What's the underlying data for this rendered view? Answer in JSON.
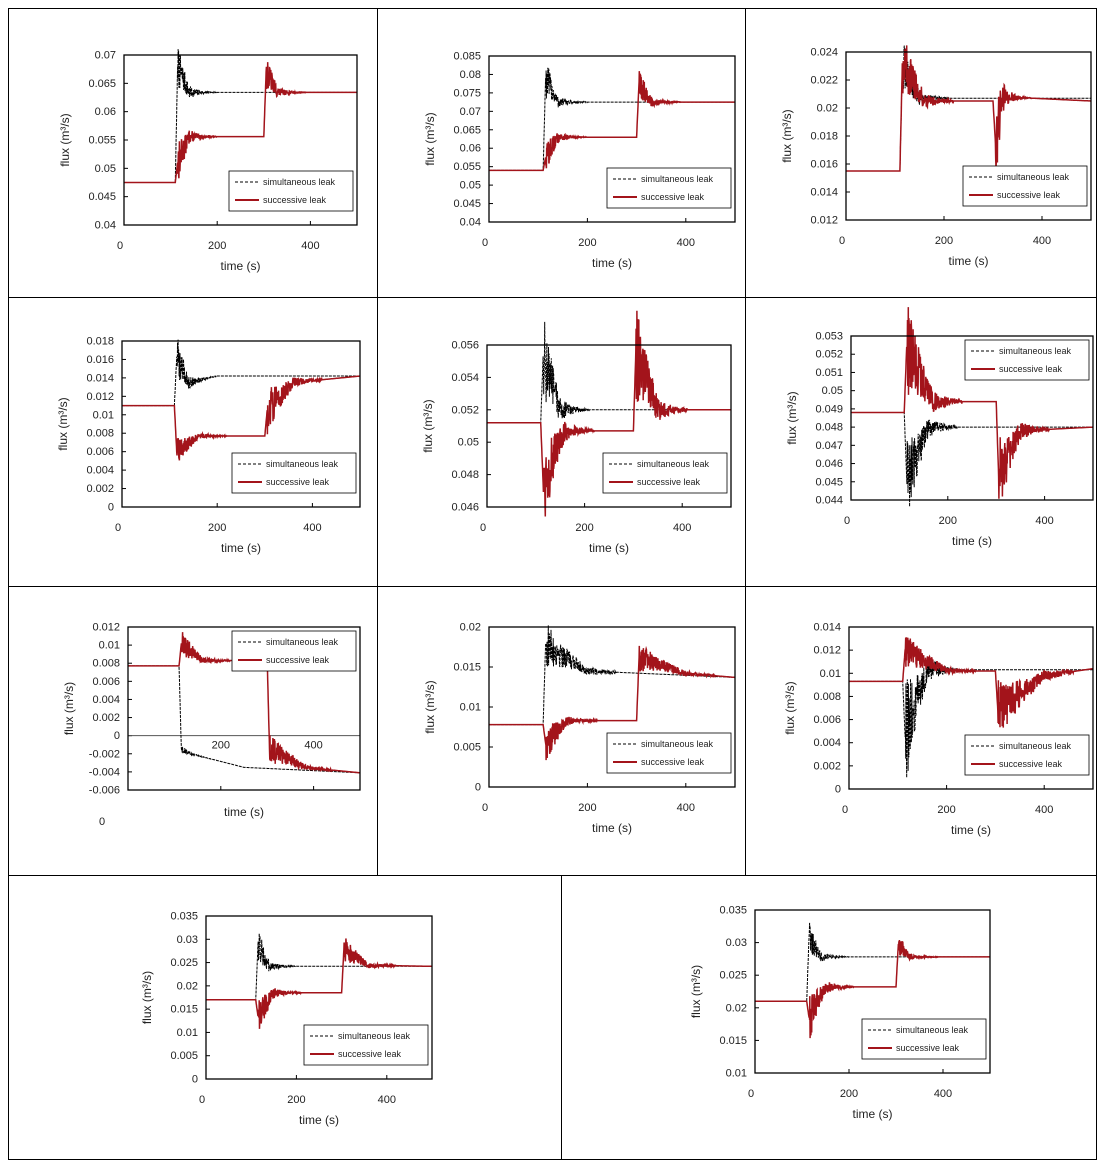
{
  "figure": {
    "x_ticks": [
      "0",
      "200",
      "400"
    ],
    "xlabel": "time (s)",
    "ylabel": "flux (m³/s)",
    "legend": [
      "simultaneous leak",
      "successive leak"
    ],
    "colors": {
      "simultaneous": "#000000",
      "successive": "#a3141b",
      "frame": "#000000"
    }
  },
  "chart_data": [
    {
      "type": "line",
      "xlim": [
        0,
        500
      ],
      "ylim": [
        0.04,
        0.07
      ],
      "y_ticks": [
        "0.04",
        "0.045",
        "0.05",
        "0.055",
        "0.06",
        "0.065",
        "0.07"
      ],
      "legend_position": "bottom-right",
      "series": [
        {
          "name": "simultaneous leak",
          "x": [
            0,
            110,
            115,
            140,
            500
          ],
          "y": [
            0.0475,
            0.0475,
            0.068,
            0.0634,
            0.0634
          ]
        },
        {
          "name": "successive leak",
          "x": [
            0,
            110,
            115,
            140,
            300,
            305,
            330,
            500
          ],
          "y": [
            0.0475,
            0.0475,
            0.051,
            0.0556,
            0.0556,
            0.067,
            0.0634,
            0.0634
          ]
        }
      ]
    },
    {
      "type": "line",
      "xlim": [
        0,
        500
      ],
      "ylim": [
        0.04,
        0.085
      ],
      "y_ticks": [
        "0.04",
        "0.045",
        "0.05",
        "0.055",
        "0.06",
        "0.065",
        "0.07",
        "0.075",
        "0.08",
        "0.085"
      ],
      "legend_position": "bottom-right",
      "series": [
        {
          "name": "simultaneous leak",
          "x": [
            0,
            110,
            115,
            140,
            500
          ],
          "y": [
            0.054,
            0.054,
            0.079,
            0.0725,
            0.0725
          ]
        },
        {
          "name": "successive leak",
          "x": [
            0,
            110,
            115,
            140,
            300,
            305,
            330,
            500
          ],
          "y": [
            0.054,
            0.054,
            0.0575,
            0.063,
            0.063,
            0.078,
            0.0725,
            0.0725
          ]
        }
      ]
    },
    {
      "type": "line",
      "xlim": [
        0,
        500
      ],
      "ylim": [
        0.012,
        0.024
      ],
      "y_ticks": [
        "0.012",
        "0.014",
        "0.016",
        "0.018",
        "0.02",
        "0.022",
        "0.024"
      ],
      "legend_position": "bottom-right",
      "series": [
        {
          "name": "simultaneous leak",
          "x": [
            0,
            110,
            115,
            150,
            500
          ],
          "y": [
            0.0155,
            0.0155,
            0.023,
            0.0207,
            0.0207
          ]
        },
        {
          "name": "successive leak",
          "x": [
            0,
            110,
            115,
            160,
            300,
            305,
            320,
            500
          ],
          "y": [
            0.0155,
            0.0155,
            0.0232,
            0.0205,
            0.0205,
            0.0175,
            0.0208,
            0.0205
          ]
        }
      ]
    },
    {
      "type": "line",
      "xlim": [
        0,
        500
      ],
      "ylim": [
        0,
        0.018
      ],
      "y_ticks": [
        "0",
        "0.002",
        "0.004",
        "0.006",
        "0.008",
        "0.01",
        "0.012",
        "0.014",
        "0.016",
        "0.018"
      ],
      "legend_position": "bottom-right",
      "series": [
        {
          "name": "simultaneous leak",
          "x": [
            0,
            110,
            115,
            140,
            200,
            500
          ],
          "y": [
            0.011,
            0.011,
            0.0163,
            0.0135,
            0.0142,
            0.0142
          ]
        },
        {
          "name": "successive leak",
          "x": [
            0,
            110,
            115,
            160,
            300,
            305,
            360,
            500
          ],
          "y": [
            0.011,
            0.011,
            0.006,
            0.0077,
            0.0077,
            0.0105,
            0.0135,
            0.0142
          ]
        }
      ]
    },
    {
      "type": "line",
      "xlim": [
        0,
        500
      ],
      "ylim": [
        0.046,
        0.056
      ],
      "y_ticks": [
        "0.046",
        "0.048",
        "0.05",
        "0.052",
        "0.054",
        "0.056"
      ],
      "legend_position": "bottom-right",
      "series": [
        {
          "name": "simultaneous leak",
          "x": [
            0,
            110,
            115,
            150,
            500
          ],
          "y": [
            0.0512,
            0.0512,
            0.0553,
            0.052,
            0.052
          ]
        },
        {
          "name": "successive leak",
          "x": [
            0,
            110,
            115,
            160,
            300,
            305,
            350,
            500
          ],
          "y": [
            0.0512,
            0.0512,
            0.0475,
            0.0507,
            0.0507,
            0.0556,
            0.052,
            0.052
          ]
        }
      ]
    },
    {
      "type": "line",
      "xlim": [
        0,
        500
      ],
      "ylim": [
        0.044,
        0.053
      ],
      "y_ticks": [
        "0.044",
        "0.045",
        "0.046",
        "0.047",
        "0.048",
        "0.049",
        "0.05",
        "0.051",
        "0.052",
        "0.053"
      ],
      "legend_position": "top-right",
      "series": [
        {
          "name": "simultaneous leak",
          "x": [
            0,
            110,
            115,
            160,
            500
          ],
          "y": [
            0.0488,
            0.0488,
            0.0452,
            0.048,
            0.048
          ]
        },
        {
          "name": "successive leak",
          "x": [
            0,
            110,
            115,
            170,
            300,
            305,
            350,
            500
          ],
          "y": [
            0.0488,
            0.0488,
            0.0524,
            0.0494,
            0.0494,
            0.0453,
            0.0478,
            0.048
          ]
        }
      ]
    },
    {
      "type": "line",
      "xlim": [
        0,
        500
      ],
      "ylim": [
        -0.006,
        0.012
      ],
      "y_ticks": [
        "-0.006",
        "-0.004",
        "-0.002",
        "0",
        "0.002",
        "0.004",
        "0.006",
        "0.008",
        "0.01",
        "0.012"
      ],
      "x_ticks_inline": [
        "200",
        "400"
      ],
      "legend_position": "top-right",
      "series": [
        {
          "name": "simultaneous leak",
          "x": [
            0,
            110,
            115,
            135,
            250,
            500
          ],
          "y": [
            0.0077,
            0.0077,
            -0.0015,
            -0.002,
            -0.0035,
            -0.0041
          ]
        },
        {
          "name": "successive leak",
          "x": [
            0,
            110,
            115,
            160,
            300,
            305,
            380,
            500
          ],
          "y": [
            0.0077,
            0.0077,
            0.0102,
            0.0083,
            0.0083,
            -0.0015,
            -0.0035,
            -0.0041
          ]
        }
      ]
    },
    {
      "type": "line",
      "xlim": [
        0,
        500
      ],
      "ylim": [
        0,
        0.02
      ],
      "y_ticks": [
        "0",
        "0.005",
        "0.01",
        "0.015",
        "0.02"
      ],
      "legend_position": "bottom-right",
      "series": [
        {
          "name": "simultaneous leak",
          "x": [
            0,
            110,
            115,
            200,
            500
          ],
          "y": [
            0.0078,
            0.0078,
            0.0178,
            0.0145,
            0.0137
          ]
        },
        {
          "name": "successive leak",
          "x": [
            0,
            110,
            115,
            160,
            300,
            305,
            400,
            500
          ],
          "y": [
            0.0078,
            0.0078,
            0.0055,
            0.0083,
            0.0083,
            0.0162,
            0.0142,
            0.0137
          ]
        }
      ]
    },
    {
      "type": "line",
      "xlim": [
        0,
        500
      ],
      "ylim": [
        0,
        0.014
      ],
      "y_ticks": [
        "0",
        "0.002",
        "0.004",
        "0.006",
        "0.008",
        "0.01",
        "0.012",
        "0.014"
      ],
      "legend_position": "bottom-right",
      "series": [
        {
          "name": "simultaneous leak",
          "x": [
            0,
            110,
            115,
            160,
            500
          ],
          "y": [
            0.0093,
            0.0093,
            0.0045,
            0.0103,
            0.0103
          ]
        },
        {
          "name": "successive leak",
          "x": [
            0,
            110,
            115,
            200,
            300,
            305,
            400,
            500
          ],
          "y": [
            0.0093,
            0.0093,
            0.012,
            0.0102,
            0.0102,
            0.0068,
            0.0098,
            0.0104
          ]
        }
      ]
    },
    {
      "type": "line",
      "xlim": [
        0,
        500
      ],
      "ylim": [
        0,
        0.035
      ],
      "y_ticks": [
        "0",
        "0.005",
        "0.01",
        "0.015",
        "0.02",
        "0.025",
        "0.03",
        "0.035"
      ],
      "legend_position": "bottom-right",
      "series": [
        {
          "name": "simultaneous leak",
          "x": [
            0,
            110,
            115,
            140,
            500
          ],
          "y": [
            0.017,
            0.017,
            0.029,
            0.0242,
            0.0242
          ]
        },
        {
          "name": "successive leak",
          "x": [
            0,
            110,
            115,
            150,
            300,
            305,
            360,
            500
          ],
          "y": [
            0.017,
            0.017,
            0.0135,
            0.0185,
            0.0185,
            0.0278,
            0.0244,
            0.0242
          ]
        }
      ]
    },
    {
      "type": "line",
      "xlim": [
        0,
        500
      ],
      "ylim": [
        0.01,
        0.035
      ],
      "y_ticks": [
        "0.01",
        "0.015",
        "0.02",
        "0.025",
        "0.03",
        "0.035"
      ],
      "legend_position": "bottom-right",
      "series": [
        {
          "name": "simultaneous leak",
          "x": [
            0,
            110,
            115,
            140,
            500
          ],
          "y": [
            0.021,
            0.021,
            0.031,
            0.0278,
            0.0278
          ]
        },
        {
          "name": "successive leak",
          "x": [
            0,
            110,
            115,
            150,
            300,
            305,
            330,
            500
          ],
          "y": [
            0.021,
            0.021,
            0.0185,
            0.0232,
            0.0232,
            0.0298,
            0.0278,
            0.0278
          ]
        }
      ]
    }
  ]
}
